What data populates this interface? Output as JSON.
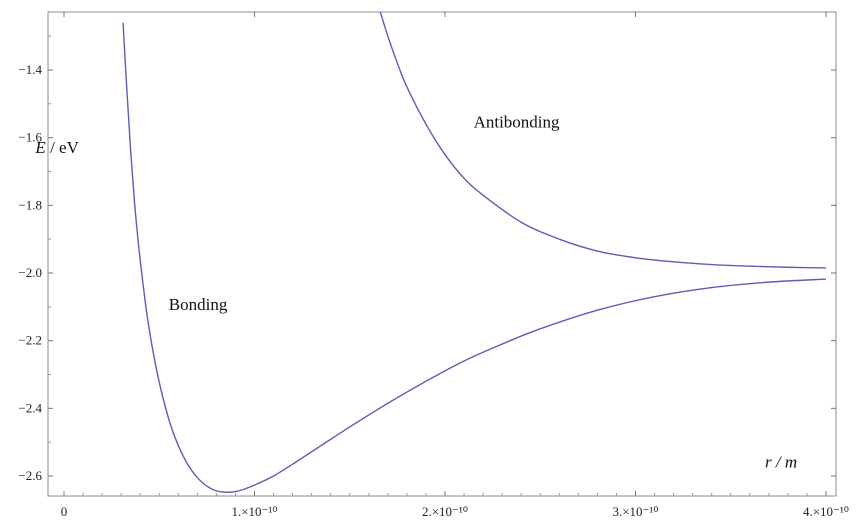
{
  "chart_data": {
    "type": "line",
    "title": "",
    "xlabel": "r / m",
    "ylabel": "E / eV",
    "xlim": [
      0,
      4.1e-10
    ],
    "ylim": [
      -2.68,
      -1.24
    ],
    "grid": false,
    "x_ticks": [
      {
        "value": 0,
        "label": "0"
      },
      {
        "value": 1e-10,
        "label": "1.×10⁻¹⁰"
      },
      {
        "value": 2e-10,
        "label": "2.×10⁻¹⁰"
      },
      {
        "value": 3e-10,
        "label": "3.×10⁻¹⁰"
      },
      {
        "value": 4e-10,
        "label": "4.×10⁻¹⁰"
      }
    ],
    "y_ticks": [
      {
        "value": -1.4,
        "label": "-1.4"
      },
      {
        "value": -1.6,
        "label": "-1.6"
      },
      {
        "value": -1.8,
        "label": "-1.8"
      },
      {
        "value": -2.0,
        "label": "-2.0"
      },
      {
        "value": -2.2,
        "label": "-2.2"
      },
      {
        "value": -2.4,
        "label": "-2.4"
      },
      {
        "value": -2.6,
        "label": "-2.6"
      }
    ],
    "series": [
      {
        "name": "Bonding",
        "color": "#5b5fb3",
        "x": [
          3.1e-11,
          3.3e-11,
          3.5e-11,
          3.7e-11,
          3.9e-11,
          4.1e-11,
          4.4e-11,
          4.8e-11,
          5.2e-11,
          5.6e-11,
          6e-11,
          6.5e-11,
          7e-11,
          7.5e-11,
          8e-11,
          8.5e-11,
          9e-11,
          9.5e-11,
          1e-10,
          1.1e-10,
          1.2e-10,
          1.35e-10,
          1.5e-10,
          1.7e-10,
          1.9e-10,
          2.1e-10,
          2.3e-10,
          2.5e-10,
          2.8e-10,
          3.1e-10,
          3.4e-10,
          3.7e-10,
          4e-10
        ],
        "y": [
          -1.26,
          -1.46,
          -1.64,
          -1.79,
          -1.91,
          -2.01,
          -2.14,
          -2.27,
          -2.37,
          -2.45,
          -2.51,
          -2.566,
          -2.605,
          -2.63,
          -2.644,
          -2.648,
          -2.646,
          -2.638,
          -2.627,
          -2.6,
          -2.565,
          -2.51,
          -2.455,
          -2.385,
          -2.32,
          -2.26,
          -2.21,
          -2.165,
          -2.11,
          -2.07,
          -2.043,
          -2.027,
          -2.018
        ]
      },
      {
        "name": "Antibonding",
        "color": "#5b5fb3",
        "x": [
          1.65e-10,
          1.7e-10,
          1.75e-10,
          1.8e-10,
          1.9e-10,
          2e-10,
          2.1e-10,
          2.2e-10,
          2.4e-10,
          2.6e-10,
          2.8e-10,
          3e-10,
          3.2e-10,
          3.4e-10,
          3.6e-10,
          3.8e-10,
          4e-10
        ],
        "y": [
          -1.21,
          -1.3,
          -1.38,
          -1.45,
          -1.56,
          -1.65,
          -1.72,
          -1.77,
          -1.85,
          -1.9,
          -1.935,
          -1.955,
          -1.967,
          -1.975,
          -1.98,
          -1.983,
          -1.985
        ]
      }
    ],
    "annotations": [
      {
        "text": "Bonding",
        "x": 5.5e-11,
        "y": -2.11
      },
      {
        "text": "Antibonding",
        "x": 2.15e-10,
        "y": -1.57
      }
    ],
    "axis_label_anchors": {
      "ylabel": {
        "x": -1.5e-11,
        "y": -1.645
      },
      "xlabel": {
        "x": 3.68e-10,
        "y": -2.575
      }
    }
  }
}
